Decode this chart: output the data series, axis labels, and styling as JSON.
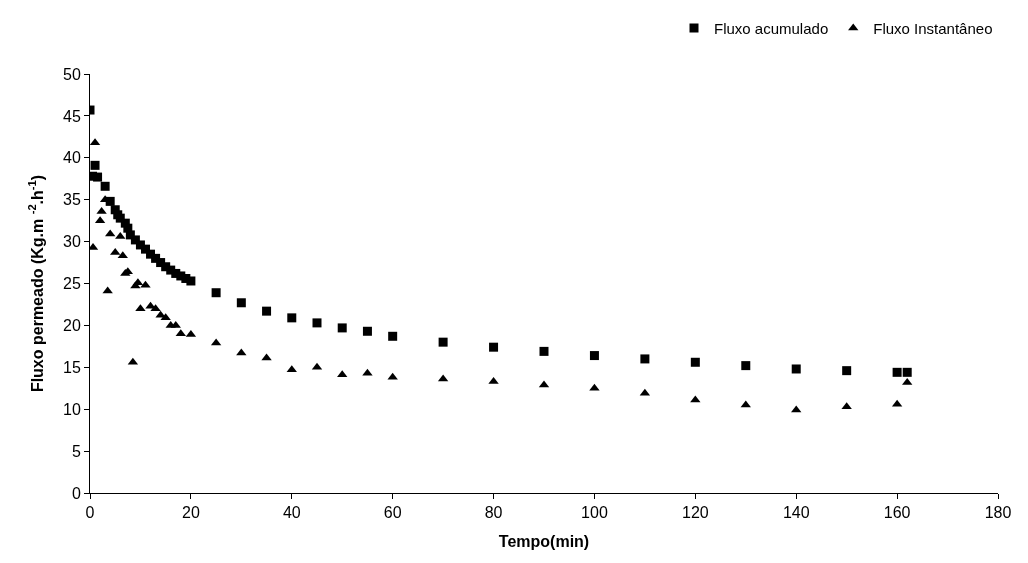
{
  "chart_data": {
    "type": "scatter",
    "xlabel": "Tempo(min)",
    "ylabel": "Fluxo permeado (Kg.m $^{-2}$.h$^{-1}$)",
    "xlim": [
      0,
      180
    ],
    "xticks": [
      0,
      20,
      40,
      60,
      80,
      100,
      120,
      140,
      160,
      180
    ],
    "ylim": [
      0,
      50
    ],
    "yticks": [
      0,
      5,
      10,
      15,
      20,
      25,
      30,
      35,
      40,
      45,
      50
    ],
    "legend": "top right",
    "series": [
      {
        "name": "Fluxo acumulado",
        "color": "#000000",
        "marker": "square",
        "x": [
          0,
          0.5,
          1,
          1.5,
          2,
          2.5,
          3,
          4,
          5,
          5.5,
          6,
          7,
          7.5,
          8,
          9,
          10,
          11,
          12,
          13,
          14,
          15,
          16,
          17,
          18,
          19,
          20,
          25,
          30,
          35,
          40,
          45,
          50,
          55,
          60,
          70,
          80,
          90,
          100,
          110,
          120,
          130,
          140,
          150,
          160,
          162
        ],
        "values": [
          45.7,
          37.8,
          39.1,
          37.7,
          null,
          null,
          36.6,
          34.8,
          33.8,
          33.2,
          32.8,
          32.2,
          31.6,
          30.8,
          30.2,
          29.6,
          29.1,
          28.5,
          28.0,
          27.5,
          27.0,
          26.6,
          26.2,
          25.9,
          25.6,
          25.3,
          23.9,
          22.7,
          21.7,
          20.9,
          20.3,
          19.7,
          19.3,
          18.7,
          18.0,
          17.4,
          16.9,
          16.4,
          16.0,
          15.6,
          15.2,
          14.8,
          14.6,
          14.4,
          14.4
        ]
      },
      {
        "name": "Fluxo Instantâneo",
        "color": "#000000",
        "marker": "triangle",
        "x": [
          0.6,
          1,
          2,
          2.3,
          3,
          3.5,
          4,
          5,
          6,
          6.5,
          7,
          7.5,
          8.5,
          9,
          9.5,
          10,
          11,
          12,
          13,
          14,
          15,
          16,
          17,
          18,
          20,
          25,
          30,
          35,
          40,
          45,
          50,
          55,
          60,
          70,
          80,
          90,
          100,
          110,
          120,
          130,
          140,
          150,
          160,
          162
        ],
        "values": [
          29.3,
          41.8,
          32.5,
          33.6,
          35.0,
          24.1,
          30.9,
          28.7,
          30.6,
          28.3,
          26.2,
          26.4,
          15.6,
          24.7,
          25.1,
          22.0,
          24.8,
          22.3,
          22.0,
          21.2,
          20.9,
          20.0,
          20.0,
          19.0,
          18.9,
          17.9,
          16.7,
          16.1,
          14.7,
          15.0,
          14.1,
          14.3,
          13.8,
          13.6,
          13.3,
          12.9,
          12.5,
          11.9,
          11.1,
          10.5,
          9.9,
          10.3,
          10.6,
          13.2
        ]
      }
    ]
  }
}
